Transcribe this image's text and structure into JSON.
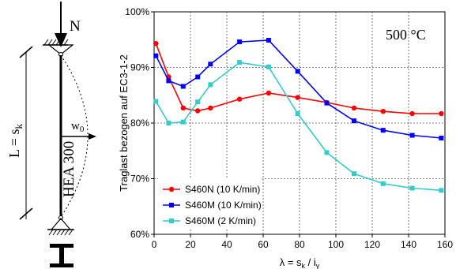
{
  "column_sketch": {
    "load_label": "N",
    "length_label_main": "L = s",
    "length_label_sub": "k",
    "section_label": "HEA 300",
    "deflection_label": "w",
    "deflection_sub": "0"
  },
  "chart_data": {
    "type": "line",
    "title": "",
    "annotation": "500 °C",
    "xlabel_main": "λ = s",
    "xlabel_sub1": "k",
    "xlabel_mid": " / i",
    "xlabel_sub2": "y",
    "ylabel": "Traglast bezogen auf EC3-1-2",
    "xlim": [
      0,
      160
    ],
    "ylim": [
      60,
      100
    ],
    "x_ticks": [
      0,
      20,
      40,
      60,
      80,
      100,
      120,
      140,
      160
    ],
    "y_ticks": [
      60,
      70,
      80,
      90,
      100
    ],
    "y_tick_labels": [
      "60%",
      "70%",
      "80%",
      "90%",
      "100%"
    ],
    "grid": true,
    "legend_position": "bottom-left",
    "series": [
      {
        "name": "S460N (10 K/min)",
        "color": "#ff0000",
        "marker": "circle",
        "x": [
          1,
          8,
          16,
          24,
          31,
          47,
          63,
          79,
          95,
          110,
          126,
          142,
          158
        ],
        "y": [
          94.3,
          88.3,
          82.7,
          82.2,
          82.7,
          84.3,
          85.4,
          84.6,
          83.7,
          82.7,
          82.1,
          81.7,
          81.7
        ]
      },
      {
        "name": "S460M (10 K/min)",
        "color": "#0000ff",
        "marker": "square",
        "x": [
          1,
          8,
          16,
          24,
          31,
          47,
          63,
          79,
          95,
          110,
          126,
          142,
          158
        ],
        "y": [
          92.1,
          87.6,
          86.6,
          88.3,
          90.6,
          94.6,
          94.9,
          89.3,
          83.6,
          80.4,
          78.7,
          77.8,
          77.3
        ]
      },
      {
        "name": "S460M (2 K/min)",
        "color": "#33cccc",
        "marker": "square",
        "x": [
          1,
          8,
          16,
          24,
          31,
          47,
          63,
          79,
          95,
          110,
          126,
          142,
          158
        ],
        "y": [
          83.9,
          80.0,
          80.2,
          83.8,
          86.9,
          90.9,
          90.1,
          81.7,
          74.7,
          70.9,
          69.1,
          68.3,
          67.9
        ]
      }
    ]
  }
}
